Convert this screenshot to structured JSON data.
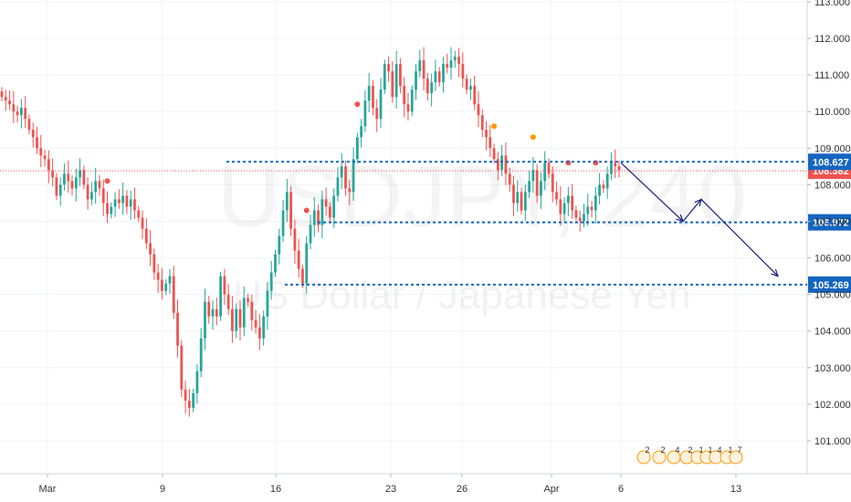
{
  "watermark": {
    "symbol": "USDJPY, 240",
    "description": "US Dollar / Japanese Yen"
  },
  "chart_data": {
    "type": "candlestick",
    "title": "",
    "xlabel": "",
    "ylabel": "",
    "ylim": [
      100.0,
      113.0
    ],
    "y_ticks": [
      "101.000",
      "102.000",
      "103.000",
      "104.000",
      "105.000",
      "106.000",
      "107.000",
      "108.000",
      "109.000",
      "110.000",
      "111.000",
      "112.000",
      "113.000"
    ],
    "x_ticks": [
      "Mar",
      "9",
      "16",
      "23",
      "26",
      "Apr",
      "6",
      "13"
    ],
    "current_price": {
      "label": "108.382",
      "value": 108.382,
      "color": "#ef5350"
    },
    "levels": [
      {
        "label": "108.627",
        "value": 108.627,
        "color": "#1565c0"
      },
      {
        "label": "106.972",
        "value": 106.972,
        "color": "#1565c0"
      },
      {
        "label": "105.269",
        "value": 105.269,
        "color": "#1565c0"
      }
    ],
    "projection": [
      108.6,
      107.0,
      107.6,
      105.5
    ],
    "series_close": [
      110.4,
      110.3,
      110.2,
      110.0,
      109.9,
      110.1,
      109.8,
      109.5,
      109.3,
      109.0,
      108.8,
      108.7,
      108.4,
      108.2,
      107.7,
      108.0,
      108.3,
      108.1,
      107.9,
      108.2,
      108.4,
      108.0,
      107.6,
      107.8,
      108.1,
      107.9,
      107.5,
      107.2,
      107.4,
      107.6,
      107.5,
      107.7,
      107.4,
      107.6,
      107.3,
      107.1,
      106.8,
      106.4,
      106.1,
      105.6,
      105.4,
      105.1,
      105.3,
      105.5,
      104.5,
      103.6,
      102.4,
      102.1,
      101.9,
      102.3,
      102.9,
      103.8,
      104.8,
      104.4,
      104.6,
      104.4,
      105.5,
      105.0,
      104.6,
      104.0,
      104.6,
      104.1,
      104.9,
      104.8,
      104.3,
      104.1,
      103.8,
      104.4,
      105.1,
      105.6,
      106.1,
      106.6,
      107.3,
      107.8,
      106.8,
      106.2,
      105.7,
      105.3,
      106.4,
      106.9,
      107.3,
      106.9,
      107.6,
      107.4,
      107.1,
      107.7,
      108.2,
      108.5,
      107.9,
      107.8,
      108.7,
      109.3,
      109.6,
      110.3,
      110.7,
      110.1,
      109.8,
      110.6,
      111.3,
      111.1,
      110.4,
      111.3,
      110.7,
      110.2,
      110.0,
      110.6,
      111.1,
      111.4,
      110.9,
      110.5,
      110.8,
      111.1,
      110.8,
      111.3,
      111.2,
      111.4,
      111.5,
      111.3,
      110.9,
      110.6,
      110.7,
      110.2,
      109.9,
      109.5,
      109.3,
      109.0,
      108.7,
      108.4,
      108.8,
      108.3,
      108.0,
      107.5,
      107.8,
      107.3,
      107.8,
      108.1,
      108.4,
      107.7,
      108.1,
      108.6,
      108.3,
      107.8,
      107.6,
      107.2,
      107.5,
      107.7,
      107.3,
      107.1,
      107.0,
      107.2,
      107.4,
      107.3,
      107.7,
      108.0,
      107.9,
      108.3,
      108.6,
      108.5,
      108.4
    ],
    "event_marks": [
      {
        "text": "2"
      },
      {
        "text": "2"
      },
      {
        "text": "4"
      },
      {
        "text": "2"
      },
      {
        "text": "1"
      },
      {
        "text": "1"
      },
      {
        "text": "4"
      },
      {
        "text": "1"
      },
      {
        "text": "7"
      }
    ]
  }
}
